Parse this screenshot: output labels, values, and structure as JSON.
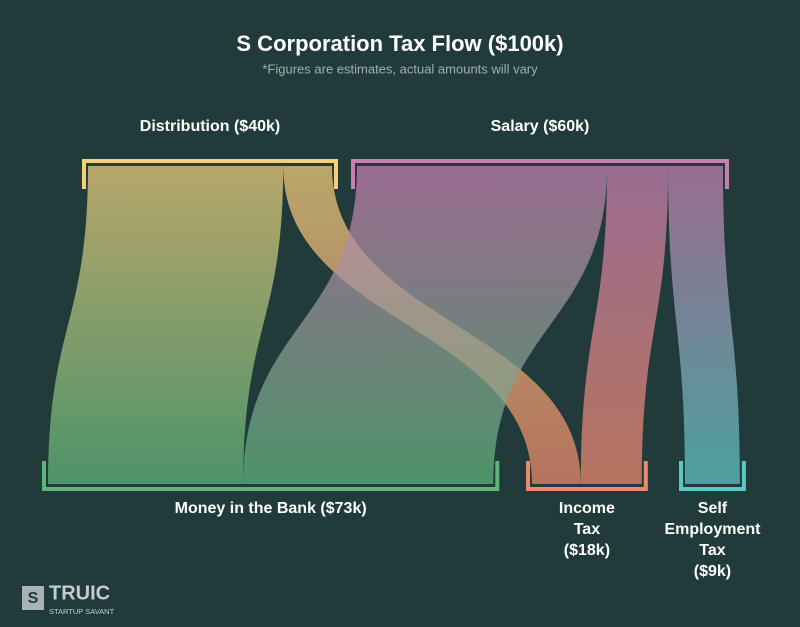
{
  "chart_data": {
    "type": "sankey",
    "title": "S Corporation Tax Flow ($100k)",
    "subtitle": "*Figures are estimates, actual amounts will vary",
    "nodes": [
      {
        "label": [
          "Distribution ($40k)"
        ],
        "color": "#f2d07c",
        "level": 0
      },
      {
        "label": [
          "Salary ($60k)"
        ],
        "color": "#c97fb2",
        "level": 0
      },
      {
        "label": [
          "Money in the Bank ($73k)"
        ],
        "color": "#5fb67c",
        "level": 1
      },
      {
        "label": [
          "Income",
          "Tax",
          "($18k)"
        ],
        "color": "#f0896b",
        "level": 1
      },
      {
        "label": [
          "Self",
          "Employment",
          "Tax",
          "($9k)"
        ],
        "color": "#5cc7c4",
        "level": 1
      }
    ],
    "links": [
      {
        "source": 0,
        "target": 2,
        "value": 32
      },
      {
        "source": 0,
        "target": 3,
        "value": 8
      },
      {
        "source": 1,
        "target": 2,
        "value": 41
      },
      {
        "source": 1,
        "target": 3,
        "value": 10
      },
      {
        "source": 1,
        "target": 4,
        "value": 9
      }
    ]
  },
  "logo": {
    "mark": "S",
    "name": "TRUIC",
    "tagline": "STARTUP SAVANT"
  }
}
